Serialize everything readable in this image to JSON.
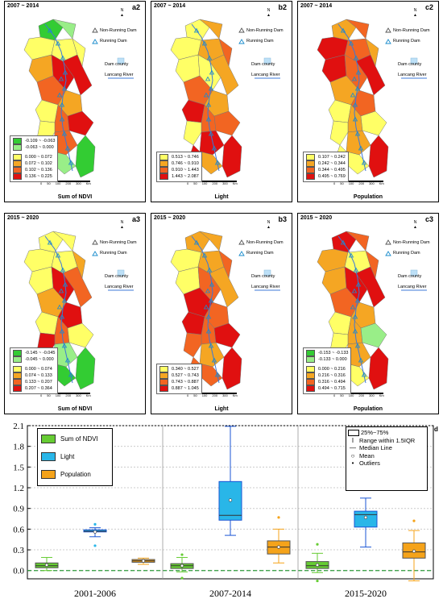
{
  "panels": [
    {
      "id": "a2",
      "period": "2007 ~ 2014",
      "xlabel": "Sum of NDVI",
      "legend": [
        {
          "label": "-0.109 ~ -0.063",
          "color": "#33cc33"
        },
        {
          "label": "-0.063 ~ 0.000",
          "color": "#99ee88"
        },
        {
          "label": "0.000 ~ 0.072",
          "color": "#ffff66"
        },
        {
          "label": "0.072 ~ 0.102",
          "color": "#f5a623"
        },
        {
          "label": "0.102 ~ 0.136",
          "color": "#f26522"
        },
        {
          "label": "0.136 ~ 0.225",
          "color": "#e01010"
        }
      ],
      "split": 2,
      "regions": [
        "#33cc33",
        "#99ee88",
        "#ffff66",
        "#ffff66",
        "#ffff66",
        "#f5a623",
        "#e01010",
        "#e01010",
        "#f26522",
        "#f5a623",
        "#ffff66",
        "#f26522",
        "#ffff66",
        "#e01010",
        "#f26522",
        "#ffff66",
        "#99ee88",
        "#33cc33"
      ]
    },
    {
      "id": "b2",
      "period": "2007 ~ 2014",
      "xlabel": "Light",
      "legend": [
        {
          "label": "0.513 ~ 0.746",
          "color": "#ffff66"
        },
        {
          "label": "0.746 ~ 0.910",
          "color": "#f5a623"
        },
        {
          "label": "0.910 ~ 1.443",
          "color": "#f26522"
        },
        {
          "label": "1.443 ~ 2.087",
          "color": "#e01010"
        }
      ],
      "split": 0,
      "regions": [
        "#ffff66",
        "#f5a623",
        "#ffff66",
        "#f5a623",
        "#f26522",
        "#ffff66",
        "#f5a623",
        "#ffff66",
        "#f26522",
        "#f5a623",
        "#e01010",
        "#f26522",
        "#ffff66",
        "#f26522",
        "#e01010",
        "#e01010",
        "#f5a623",
        "#e01010"
      ]
    },
    {
      "id": "c2",
      "period": "2007 ~ 2014",
      "xlabel": "Population",
      "legend": [
        {
          "label": "0.107 ~ 0.242",
          "color": "#ffff66"
        },
        {
          "label": "0.242 ~ 0.344",
          "color": "#f5a623"
        },
        {
          "label": "0.344 ~ 0.495",
          "color": "#f26522"
        },
        {
          "label": "0.495 ~ 0.769",
          "color": "#e01010"
        }
      ],
      "split": 0,
      "regions": [
        "#f5a623",
        "#f26522",
        "#e01010",
        "#f26522",
        "#f5a623",
        "#e01010",
        "#e01010",
        "#f26522",
        "#f5a623",
        "#f26522",
        "#ffff66",
        "#f5a623",
        "#ffff66",
        "#ffff66",
        "#f5a623",
        "#ffff66",
        "#ffff66",
        "#e01010"
      ]
    },
    {
      "id": "a3",
      "period": "2015 ~ 2020",
      "xlabel": "Sum of NDVI",
      "legend": [
        {
          "label": "-0.145 ~ -0.045",
          "color": "#33cc33"
        },
        {
          "label": "-0.045 ~ 0.000",
          "color": "#99ee88"
        },
        {
          "label": "0.000 ~ 0.074",
          "color": "#ffff66"
        },
        {
          "label": "0.074 ~ 0.133",
          "color": "#f5a623"
        },
        {
          "label": "0.133 ~ 0.207",
          "color": "#f26522"
        },
        {
          "label": "0.207 ~ 0.364",
          "color": "#e01010"
        }
      ],
      "split": 2,
      "regions": [
        "#ffff66",
        "#ffff66",
        "#ffff66",
        "#ffff66",
        "#f5a623",
        "#ffff66",
        "#f26522",
        "#e01010",
        "#f5a623",
        "#e01010",
        "#ffff66",
        "#f26522",
        "#e01010",
        "#ffff66",
        "#99ee88",
        "#ffff66",
        "#33cc33",
        "#33cc33"
      ]
    },
    {
      "id": "b3",
      "period": "2015 ~ 2020",
      "xlabel": "Light",
      "legend": [
        {
          "label": "0.340 ~ 0.527",
          "color": "#ffff66"
        },
        {
          "label": "0.527 ~ 0.743",
          "color": "#f5a623"
        },
        {
          "label": "0.743 ~ 0.887",
          "color": "#f26522"
        },
        {
          "label": "0.887 ~ 1.045",
          "color": "#e01010"
        }
      ],
      "split": 0,
      "regions": [
        "#f5a623",
        "#f5a623",
        "#ffff66",
        "#f5a623",
        "#f26522",
        "#ffff66",
        "#f5a623",
        "#f26522",
        "#e01010",
        "#f26522",
        "#e01010",
        "#f26522",
        "#f26522",
        "#e01010",
        "#f5a623",
        "#f26522",
        "#f26522",
        "#e01010"
      ]
    },
    {
      "id": "c3",
      "period": "2015 ~ 2020",
      "xlabel": "Population",
      "legend": [
        {
          "label": "-0.153 ~ -0.133",
          "color": "#33cc33"
        },
        {
          "label": "-0.133 ~ 0.000",
          "color": "#99ee88"
        },
        {
          "label": "0.000 ~ 0.216",
          "color": "#ffff66"
        },
        {
          "label": "0.216 ~ 0.316",
          "color": "#f5a623"
        },
        {
          "label": "0.316 ~ 0.494",
          "color": "#f26522"
        },
        {
          "label": "0.494 ~ 0.715",
          "color": "#e01010"
        }
      ],
      "split": 2,
      "regions": [
        "#e01010",
        "#f26522",
        "#f5a623",
        "#ffff66",
        "#f26522",
        "#f5a623",
        "#e01010",
        "#e01010",
        "#f26522",
        "#f5a623",
        "#ffff66",
        "#f5a623",
        "#ffff66",
        "#99ee88",
        "#f5a623",
        "#ffff66",
        "#ffff66",
        "#e01010"
      ]
    }
  ],
  "map_legend": {
    "non_running": "Non-Running Dam",
    "running": "Running Dam",
    "dam_county": "Dam county",
    "river": "Lancang River"
  },
  "scale_labels": [
    "0",
    "50",
    "100",
    "200",
    "300",
    "Km"
  ],
  "north_label": "N",
  "chart_data": {
    "type": "box",
    "id": "d",
    "categories": [
      "2001-2006",
      "2007-2014",
      "2015-2020"
    ],
    "yticks": [
      0.0,
      0.3,
      0.6,
      0.9,
      1.2,
      1.5,
      1.8,
      2.1
    ],
    "ylim": [
      -0.12,
      2.1
    ],
    "series": [
      {
        "name": "Sum of NDVI",
        "color": "#66cc33",
        "boxes": [
          {
            "min": 0.0,
            "q1": 0.04,
            "median": 0.07,
            "q3": 0.11,
            "max": 0.19,
            "mean": 0.08,
            "outliers": []
          },
          {
            "min": -0.02,
            "q1": 0.03,
            "median": 0.07,
            "q3": 0.1,
            "max": 0.19,
            "mean": 0.07,
            "outliers": [
              0.23,
              -0.11
            ]
          },
          {
            "min": -0.03,
            "q1": 0.03,
            "median": 0.07,
            "q3": 0.13,
            "max": 0.25,
            "mean": 0.08,
            "outliers": [
              -0.15,
              0.38
            ]
          }
        ]
      },
      {
        "name": "Light",
        "color": "#29b6e8",
        "boxes": [
          {
            "min": 0.49,
            "q1": 0.56,
            "median": 0.57,
            "q3": 0.59,
            "max": 0.62,
            "mean": 0.56,
            "outliers": [
              0.67,
              0.36
            ]
          },
          {
            "min": 0.51,
            "q1": 0.73,
            "median": 0.8,
            "q3": 1.29,
            "max": 2.09,
            "mean": 1.02,
            "outliers": []
          },
          {
            "min": 0.34,
            "q1": 0.63,
            "median": 0.81,
            "q3": 0.86,
            "max": 1.05,
            "mean": 0.77,
            "outliers": []
          }
        ]
      },
      {
        "name": "Population",
        "color": "#f5a31a",
        "boxes": [
          {
            "min": 0.09,
            "q1": 0.12,
            "median": 0.14,
            "q3": 0.16,
            "max": 0.18,
            "mean": 0.14,
            "outliers": []
          },
          {
            "min": 0.11,
            "q1": 0.24,
            "median": 0.34,
            "q3": 0.43,
            "max": 0.6,
            "mean": 0.34,
            "outliers": [
              0.77
            ]
          },
          {
            "min": -0.15,
            "q1": 0.18,
            "median": 0.27,
            "q3": 0.4,
            "max": 0.58,
            "mean": 0.28,
            "outliers": [
              0.72
            ]
          }
        ]
      }
    ],
    "legend_box": [
      "25%~75%",
      "Range within 1.5IQR",
      "Median Line",
      "Mean",
      "Outliers"
    ]
  }
}
